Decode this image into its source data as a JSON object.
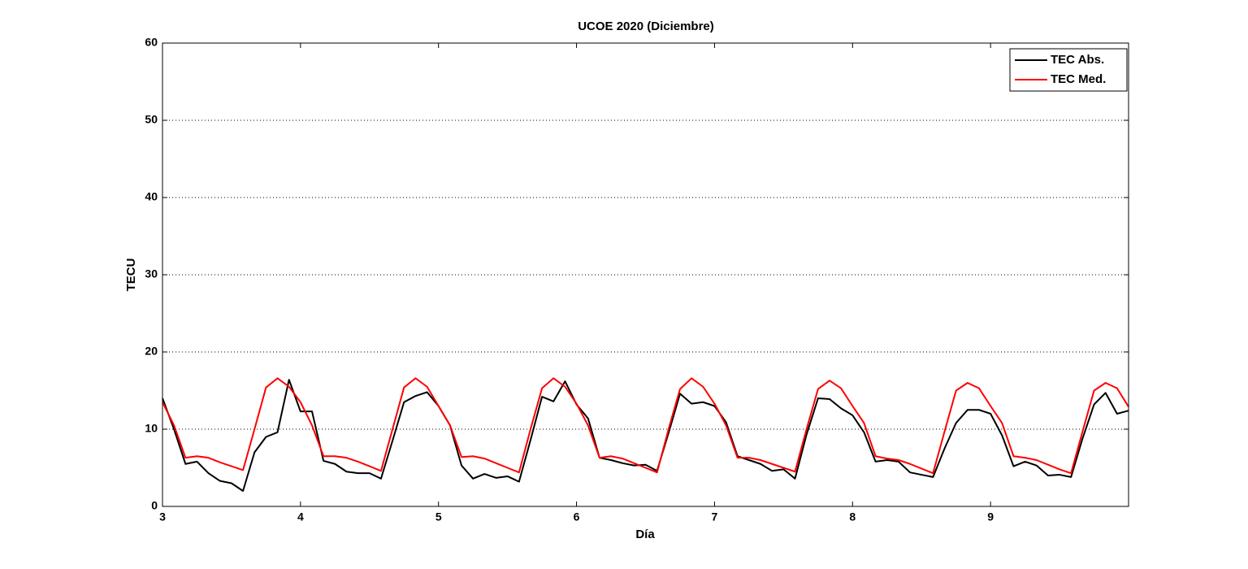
{
  "chart_data": {
    "type": "line",
    "title": "UCOE 2020 (Diciembre)",
    "xlabel": "Día",
    "ylabel": "TECU",
    "x": [
      3,
      3.0833,
      3.1667,
      3.25,
      3.3333,
      3.4167,
      3.5,
      3.5833,
      3.6667,
      3.75,
      3.8333,
      3.9167,
      4,
      4.0833,
      4.1667,
      4.25,
      4.3333,
      4.4167,
      4.5,
      4.5833,
      4.6667,
      4.75,
      4.8333,
      4.9167,
      5,
      5.0833,
      5.1667,
      5.25,
      5.3333,
      5.4167,
      5.5,
      5.5833,
      5.6667,
      5.75,
      5.8333,
      5.9167,
      6,
      6.0833,
      6.1667,
      6.25,
      6.3333,
      6.4167,
      6.5,
      6.5833,
      6.6667,
      6.75,
      6.8333,
      6.9167,
      7,
      7.0833,
      7.1667,
      7.25,
      7.3333,
      7.4167,
      7.5,
      7.5833,
      7.6667,
      7.75,
      7.8333,
      7.9167,
      8,
      8.0833,
      8.1667,
      8.25,
      8.3333,
      8.4167,
      8.5,
      8.5833,
      8.6667,
      8.75,
      8.8333,
      8.9167,
      9,
      9.0833,
      9.1667,
      9.25,
      9.3333,
      9.4167,
      9.5,
      9.5833,
      9.6667,
      9.75,
      9.8333,
      9.9167,
      10
    ],
    "series": [
      {
        "name": "TEC Abs.",
        "color": "#000000",
        "values": [
          14,
          10,
          5.5,
          5.8,
          4.3,
          3.3,
          3.0,
          2.0,
          7,
          9,
          9.6,
          16.4,
          12.3,
          12.3,
          5.9,
          5.5,
          4.5,
          4.3,
          4.3,
          3.6,
          8.5,
          13.5,
          14.3,
          14.8,
          13,
          10.5,
          5.3,
          3.6,
          4.2,
          3.7,
          3.9,
          3.2,
          8.6,
          14.2,
          13.6,
          16.2,
          13.2,
          11.4,
          6.3,
          6.0,
          5.6,
          5.3,
          5.4,
          4.6,
          9.5,
          14.6,
          13.3,
          13.5,
          13,
          10.9,
          6.5,
          6.0,
          5.5,
          4.6,
          4.8,
          3.6,
          9.3,
          14.0,
          13.9,
          12.7,
          11.8,
          9.6,
          5.8,
          6.0,
          5.8,
          4.4,
          4.1,
          3.8,
          7.5,
          10.8,
          12.5,
          12.5,
          12,
          9.2,
          5.2,
          5.8,
          5.3,
          4.0,
          4.1,
          3.8,
          8.8,
          13.2,
          14.7,
          12.0,
          12.4
        ]
      },
      {
        "name": "TEC Med.",
        "color": "#ff0000",
        "values": [
          13.5,
          10.5,
          6.3,
          6.5,
          6.3,
          5.7,
          5.2,
          4.7,
          10,
          15.4,
          16.6,
          15.5,
          13.5,
          10.5,
          6.5,
          6.5,
          6.3,
          5.8,
          5.2,
          4.6,
          10,
          15.4,
          16.6,
          15.5,
          13,
          10.5,
          6.4,
          6.5,
          6.2,
          5.6,
          5.0,
          4.4,
          10,
          15.3,
          16.6,
          15.5,
          13.3,
          10.5,
          6.3,
          6.5,
          6.2,
          5.6,
          5.0,
          4.4,
          10,
          15.2,
          16.6,
          15.5,
          13.3,
          10.5,
          6.3,
          6.3,
          6.0,
          5.5,
          5.0,
          4.5,
          10,
          15.2,
          16.3,
          15.3,
          13,
          10.8,
          6.5,
          6.2,
          6.0,
          5.5,
          4.9,
          4.3,
          9.7,
          15,
          16,
          15.3,
          13,
          10.8,
          6.5,
          6.3,
          6.0,
          5.4,
          4.8,
          4.3,
          9.7,
          15,
          16,
          15.3,
          12.9
        ]
      }
    ],
    "xlim": [
      3,
      10
    ],
    "xticks": [
      3,
      4,
      5,
      6,
      7,
      8,
      9
    ],
    "ylim": [
      0,
      60
    ],
    "yticks": [
      0,
      10,
      20,
      30,
      40,
      50,
      60
    ],
    "grid": true,
    "legend": "upper right"
  }
}
